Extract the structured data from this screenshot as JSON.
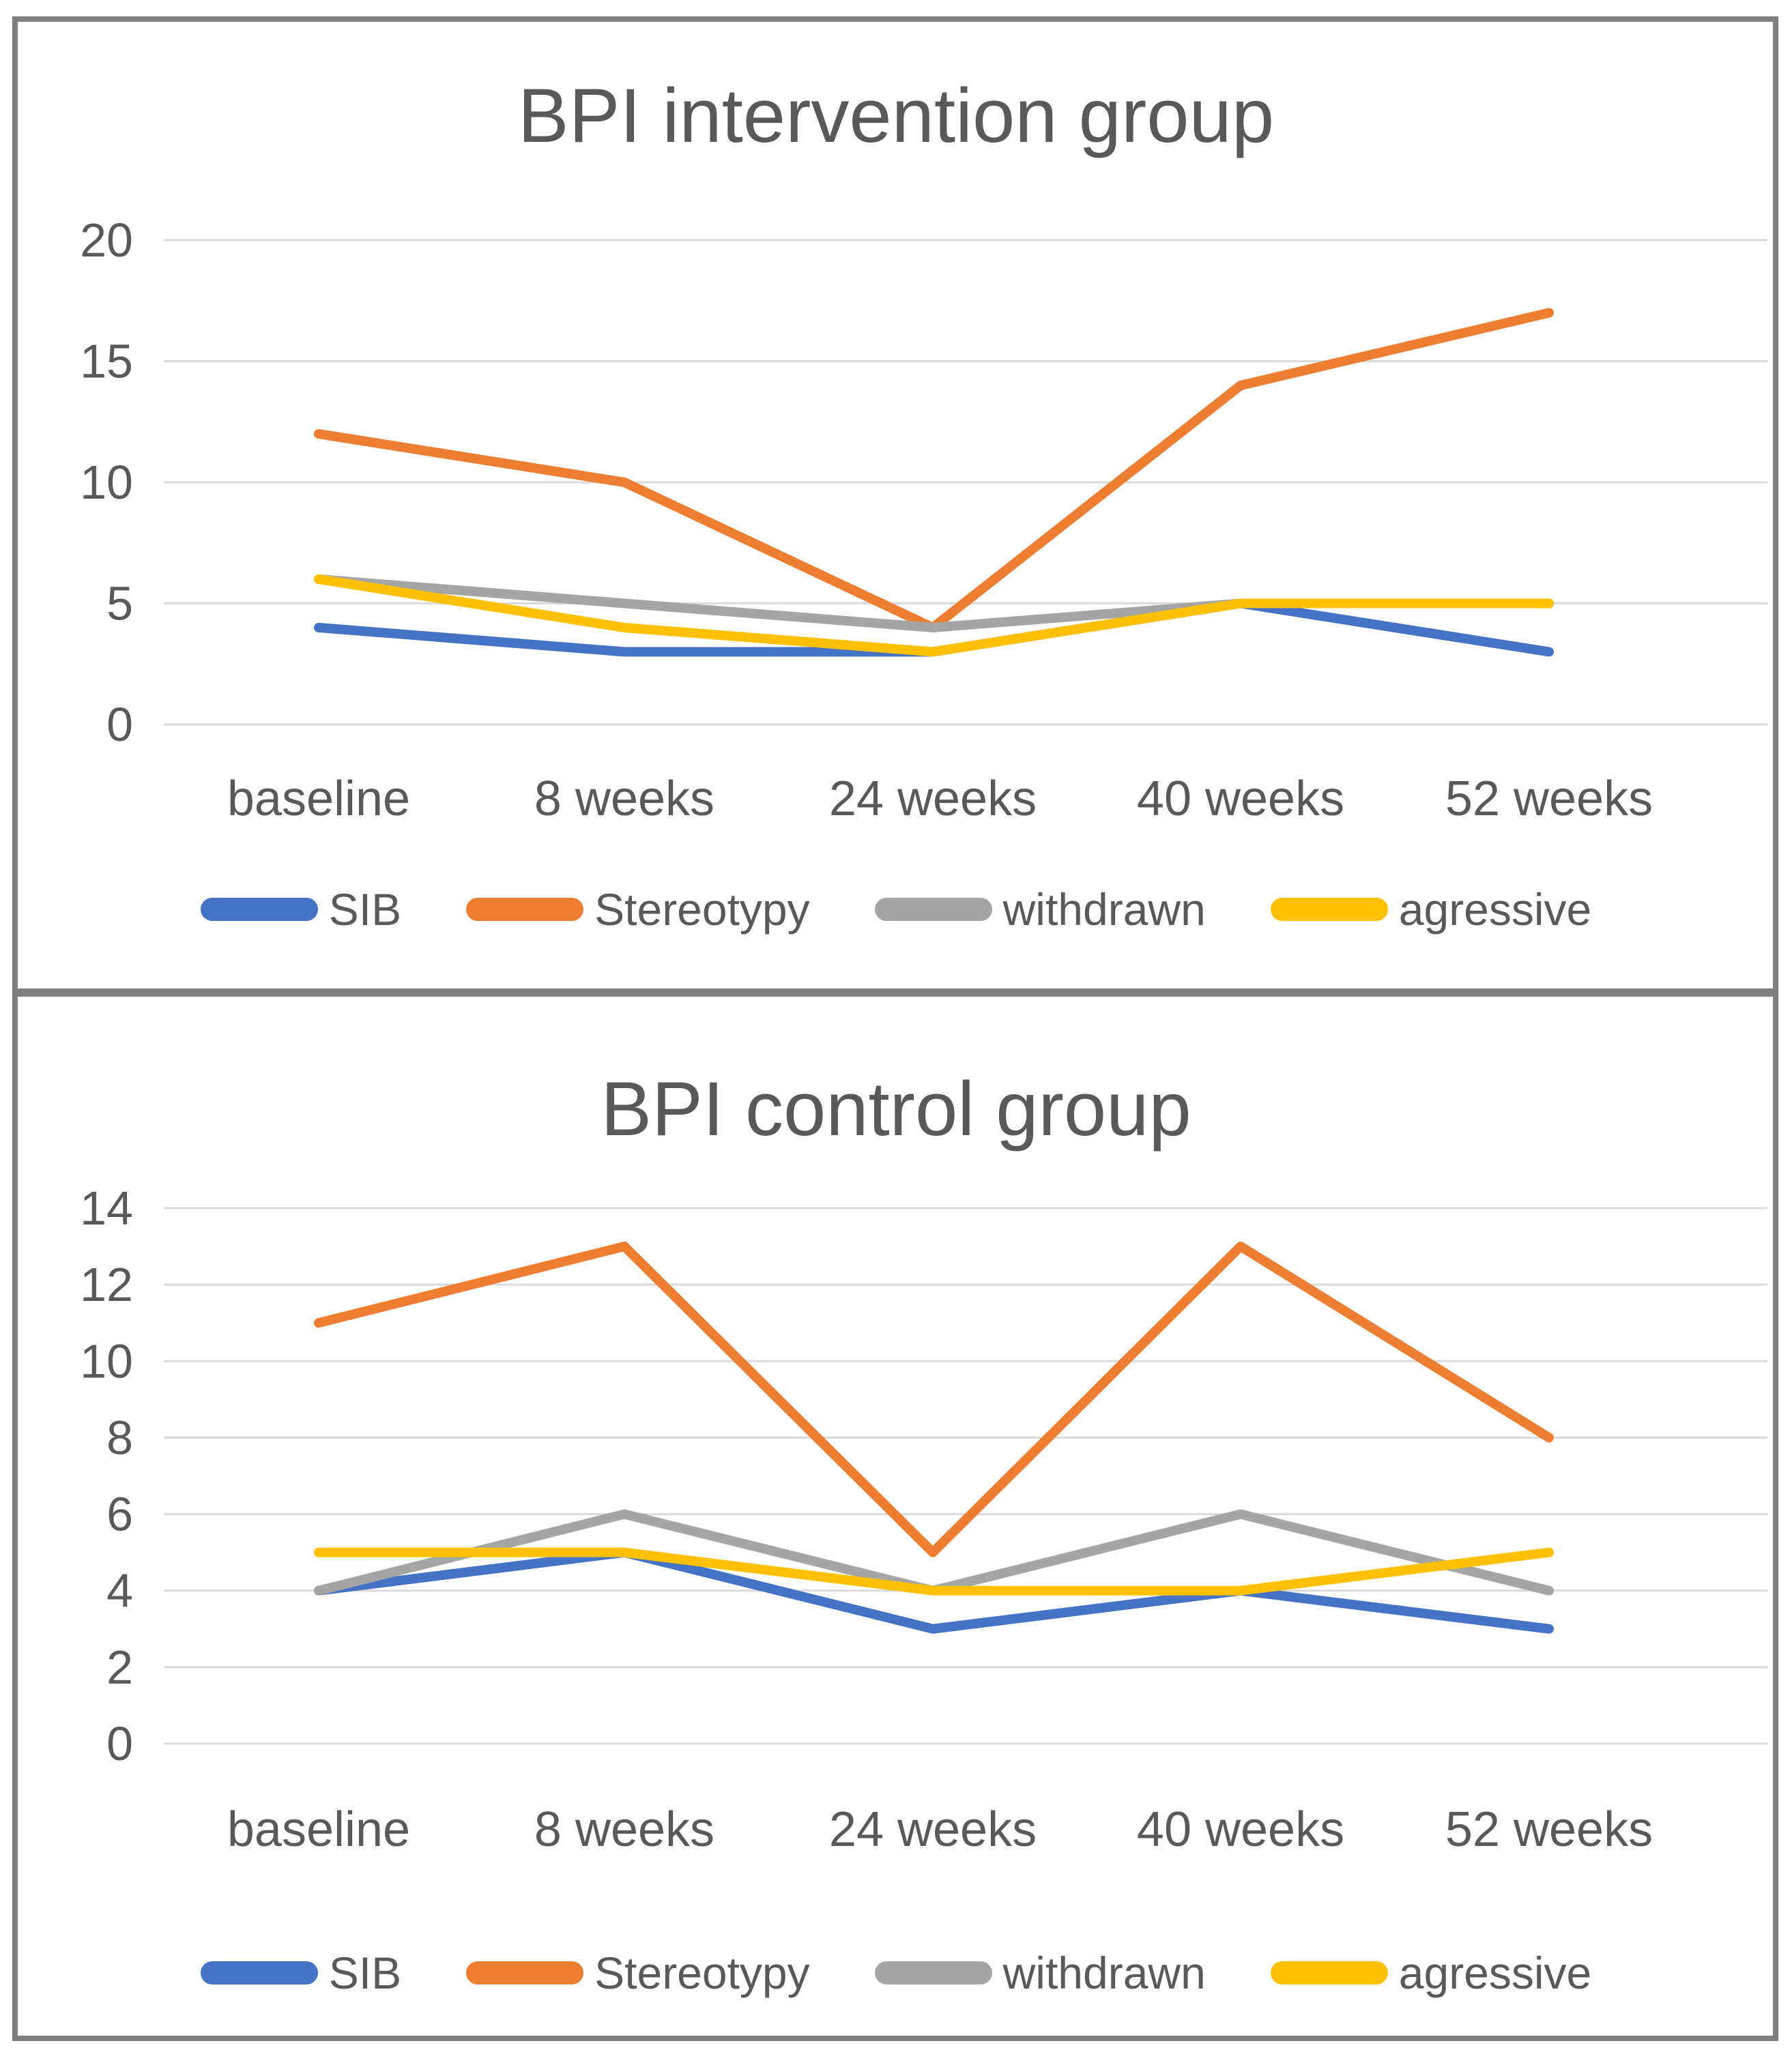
{
  "styles": {
    "frame_color": "#808080",
    "grid_color": "#D9D9D9",
    "text_color": "#595959"
  },
  "chart_data": [
    {
      "type": "line",
      "title": "BPI intervention group",
      "categories": [
        "baseline",
        "8 weeks",
        "24 weeks",
        "40 weeks",
        "52 weeks"
      ],
      "series": [
        {
          "name": "SIB",
          "color": "#4472C4",
          "values": [
            4,
            3,
            3,
            5,
            3
          ]
        },
        {
          "name": "Stereotypy",
          "color": "#ED7D31",
          "values": [
            12,
            10,
            4,
            14,
            17
          ]
        },
        {
          "name": "withdrawn",
          "color": "#A5A5A5",
          "values": [
            6,
            5,
            4,
            5,
            5
          ]
        },
        {
          "name": "agressive",
          "color": "#FFC000",
          "values": [
            6,
            4,
            3,
            5,
            5
          ]
        }
      ],
      "ylim": [
        0,
        20
      ],
      "yticks": [
        0,
        5,
        10,
        15,
        20
      ],
      "grid": true,
      "legend_position": "bottom"
    },
    {
      "type": "line",
      "title": "BPI control group",
      "categories": [
        "baseline",
        "8 weeks",
        "24 weeks",
        "40 weeks",
        "52 weeks"
      ],
      "series": [
        {
          "name": "SIB",
          "color": "#4472C4",
          "values": [
            4,
            5,
            3,
            4,
            3
          ]
        },
        {
          "name": "Stereotypy",
          "color": "#ED7D31",
          "values": [
            11,
            13,
            5,
            13,
            8
          ]
        },
        {
          "name": "withdrawn",
          "color": "#A5A5A5",
          "values": [
            4,
            6,
            4,
            6,
            4
          ]
        },
        {
          "name": "agressive",
          "color": "#FFC000",
          "values": [
            5,
            5,
            4,
            4,
            5
          ]
        }
      ],
      "ylim": [
        0,
        14
      ],
      "yticks": [
        0,
        2,
        4,
        6,
        8,
        10,
        12,
        14
      ],
      "grid": true,
      "legend_position": "bottom"
    }
  ]
}
